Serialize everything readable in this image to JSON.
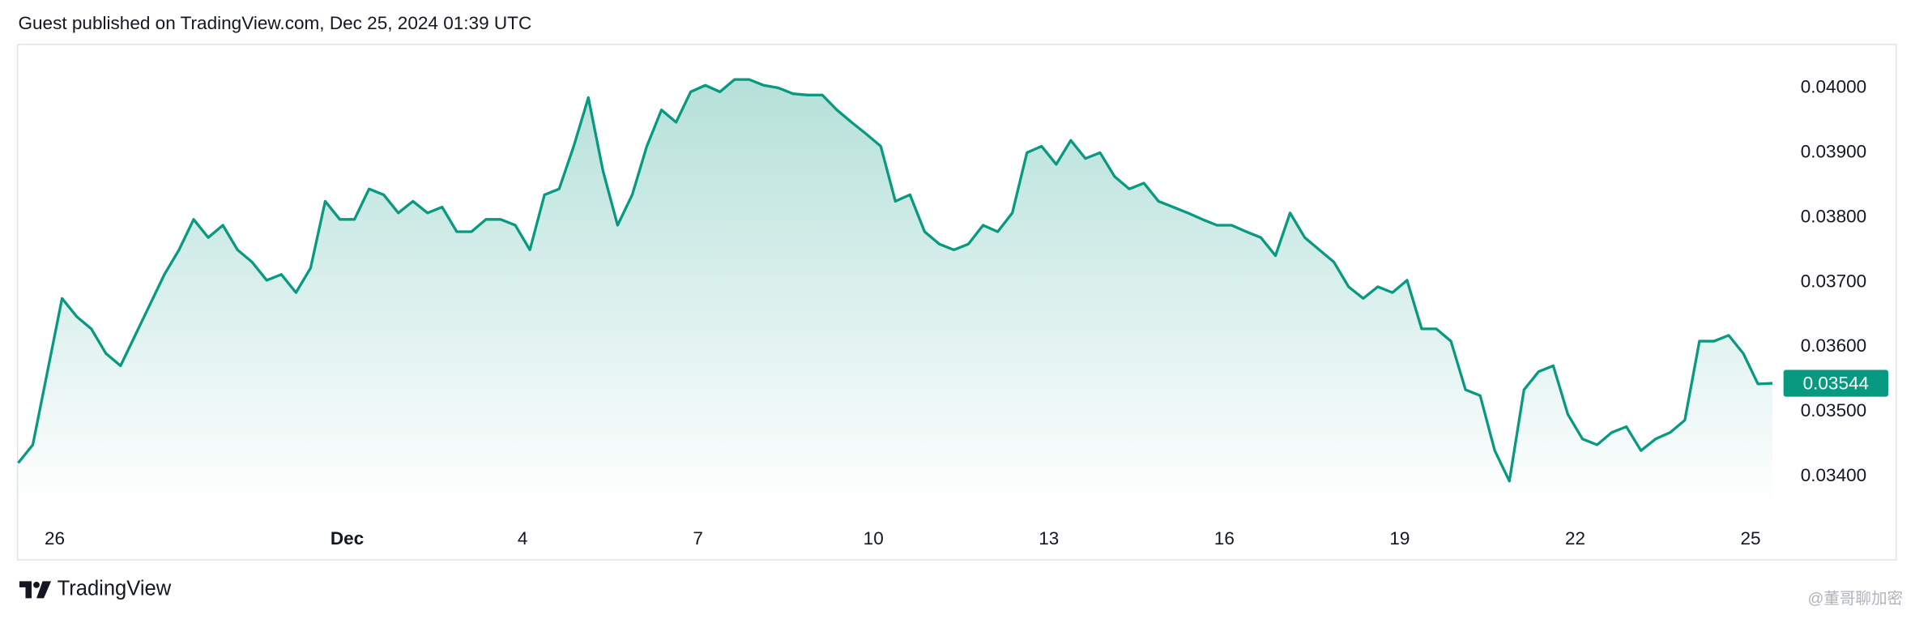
{
  "header": {
    "text": "Guest published on TradingView.com, Dec 25, 2024 01:39 UTC"
  },
  "footer": {
    "brand": "TradingView",
    "watermark": "@董哥聊加密"
  },
  "chart_data": {
    "type": "area",
    "series": [
      {
        "color": "#089981",
        "values": [
          0.03421,
          0.03449,
          0.03562,
          0.03675,
          0.03647,
          0.03628,
          0.0359,
          0.03571,
          0.03618,
          0.03665,
          0.03712,
          0.0375,
          0.03797,
          0.03769,
          0.03788,
          0.0375,
          0.03731,
          0.03703,
          0.03712,
          0.03684,
          0.03722,
          0.03825,
          0.03797,
          0.03797,
          0.03844,
          0.03835,
          0.03807,
          0.03825,
          0.03807,
          0.03816,
          0.03778,
          0.03778,
          0.03797,
          0.03797,
          0.03788,
          0.0375,
          0.03835,
          0.03844,
          0.0391,
          0.03985,
          0.03872,
          0.03788,
          0.03835,
          0.0391,
          0.03966,
          0.03947,
          0.03994,
          0.04004,
          0.03994,
          0.04013,
          0.04013,
          0.04004,
          0.04,
          0.03991,
          0.03989,
          0.03989,
          0.03966,
          0.03947,
          0.03929,
          0.0391,
          0.03825,
          0.03835,
          0.03778,
          0.03759,
          0.0375,
          0.03759,
          0.03788,
          0.03778,
          0.03807,
          0.039,
          0.0391,
          0.03882,
          0.03919,
          0.03891,
          0.039,
          0.03863,
          0.03844,
          0.03853,
          0.03825,
          0.03816,
          0.03807,
          0.03797,
          0.03788,
          0.03788,
          0.03778,
          0.03769,
          0.03741,
          0.03807,
          0.03769,
          0.0375,
          0.03731,
          0.03693,
          0.03675,
          0.03693,
          0.03684,
          0.03703,
          0.03628,
          0.03628,
          0.03609,
          0.03534,
          0.03525,
          0.0344,
          0.03393,
          0.03534,
          0.03562,
          0.03571,
          0.03496,
          0.03458,
          0.03449,
          0.03468,
          0.03477,
          0.0344,
          0.03458,
          0.03468,
          0.03487,
          0.03609,
          0.03609,
          0.03618,
          0.0359,
          0.03543,
          0.03544
        ]
      }
    ],
    "xlim": [
      0,
      120
    ],
    "xticks": [
      {
        "value": 2.5,
        "label": "26"
      },
      {
        "value": 22.5,
        "label": "Dec"
      },
      {
        "value": 34.5,
        "label": "4"
      },
      {
        "value": 46.5,
        "label": "7"
      },
      {
        "value": 58.5,
        "label": "10"
      },
      {
        "value": 70.5,
        "label": "13"
      },
      {
        "value": 82.5,
        "label": "16"
      },
      {
        "value": 94.5,
        "label": "19"
      },
      {
        "value": 106.5,
        "label": "22"
      },
      {
        "value": 118.5,
        "label": "25"
      }
    ],
    "ylim": [
      0.03355,
      0.04068
    ],
    "yticks": [
      {
        "value": 0.034,
        "label": "0.03400"
      },
      {
        "value": 0.035,
        "label": "0.03500"
      },
      {
        "value": 0.036,
        "label": "0.03600"
      },
      {
        "value": 0.037,
        "label": "0.03700"
      },
      {
        "value": 0.038,
        "label": "0.03800"
      },
      {
        "value": 0.039,
        "label": "0.03900"
      },
      {
        "value": 0.04,
        "label": "0.04000"
      }
    ],
    "current_price": {
      "value": 0.03544,
      "label": "0.03544"
    }
  }
}
